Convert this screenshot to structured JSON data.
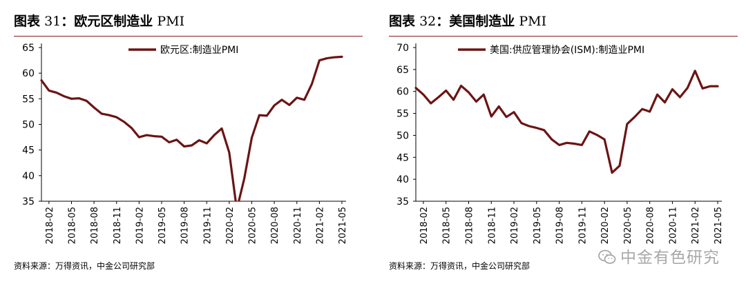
{
  "panels": [
    {
      "fig_label": "图表",
      "fig_num": "31",
      "fig_sep": "：",
      "fig_name": "欧元区制造业",
      "fig_suffix": "PMI",
      "source": "资料来源：万得资讯，中金公司研究部"
    },
    {
      "fig_label": "图表",
      "fig_num": "32",
      "fig_sep": "：",
      "fig_name": "美国制造业",
      "fig_suffix": "PMI",
      "source": "资料来源：万得资讯，中金公司研究部"
    }
  ],
  "watermark": "中金有色研究",
  "colors": {
    "line": "#6b1414",
    "accent": "#8a1a1a"
  },
  "chart_data": [
    {
      "type": "line",
      "title": "欧元区制造业 PMI",
      "ylim": [
        35,
        65
      ],
      "yticks": [
        35,
        40,
        45,
        50,
        55,
        60,
        65
      ],
      "xtick_labels": [
        "2018-02",
        "2018-05",
        "2018-08",
        "2018-11",
        "2019-02",
        "2019-05",
        "2019-08",
        "2019-11",
        "2020-02",
        "2020-05",
        "2020-08",
        "2020-11",
        "2021-02",
        "2021-05"
      ],
      "grid": false,
      "legend_position": "top-right",
      "series": [
        {
          "name": "欧元区:制造业PMI",
          "x": [
            "2018-01",
            "2018-02",
            "2018-03",
            "2018-04",
            "2018-05",
            "2018-06",
            "2018-07",
            "2018-08",
            "2018-09",
            "2018-10",
            "2018-11",
            "2018-12",
            "2019-01",
            "2019-02",
            "2019-03",
            "2019-04",
            "2019-05",
            "2019-06",
            "2019-07",
            "2019-08",
            "2019-09",
            "2019-10",
            "2019-11",
            "2019-12",
            "2020-01",
            "2020-02",
            "2020-03",
            "2020-04",
            "2020-05",
            "2020-06",
            "2020-07",
            "2020-08",
            "2020-09",
            "2020-10",
            "2020-11",
            "2020-12",
            "2021-01",
            "2021-02",
            "2021-03",
            "2021-04",
            "2021-05"
          ],
          "values": [
            58.6,
            56.6,
            56.2,
            55.5,
            55.0,
            55.1,
            54.6,
            53.3,
            52.1,
            51.8,
            51.4,
            50.5,
            49.3,
            47.5,
            47.9,
            47.7,
            47.6,
            46.5,
            47.0,
            45.7,
            45.9,
            46.9,
            46.3,
            47.9,
            49.2,
            44.5,
            33.4,
            39.4,
            47.4,
            51.8,
            51.7,
            53.7,
            54.8,
            53.8,
            55.2,
            54.8,
            57.9,
            62.5,
            62.9,
            63.1,
            63.2
          ]
        }
      ]
    },
    {
      "type": "line",
      "title": "美国制造业 PMI",
      "ylim": [
        35,
        70
      ],
      "yticks": [
        35,
        40,
        45,
        50,
        55,
        60,
        65,
        70
      ],
      "xtick_labels": [
        "2018-02",
        "2018-05",
        "2018-08",
        "2018-11",
        "2019-02",
        "2019-05",
        "2019-08",
        "2019-11",
        "2020-02",
        "2020-05",
        "2020-08",
        "2020-11",
        "2021-02",
        "2021-05"
      ],
      "grid": false,
      "legend_position": "top-right",
      "series": [
        {
          "name": "美国:供应管理协会(ISM):制造业PMI",
          "x": [
            "2018-01",
            "2018-02",
            "2018-03",
            "2018-04",
            "2018-05",
            "2018-06",
            "2018-07",
            "2018-08",
            "2018-09",
            "2018-10",
            "2018-11",
            "2018-12",
            "2019-01",
            "2019-02",
            "2019-03",
            "2019-04",
            "2019-05",
            "2019-06",
            "2019-07",
            "2019-08",
            "2019-09",
            "2019-10",
            "2019-11",
            "2019-12",
            "2020-01",
            "2020-02",
            "2020-03",
            "2020-04",
            "2020-05",
            "2020-06",
            "2020-07",
            "2020-08",
            "2020-09",
            "2020-10",
            "2020-11",
            "2020-12",
            "2021-01",
            "2021-02",
            "2021-03",
            "2021-04",
            "2021-05"
          ],
          "values": [
            60.8,
            59.3,
            57.3,
            58.7,
            60.2,
            58.1,
            61.3,
            59.8,
            57.7,
            59.3,
            54.3,
            56.6,
            54.2,
            55.3,
            52.8,
            52.1,
            51.7,
            51.2,
            49.1,
            47.8,
            48.3,
            48.1,
            47.8,
            50.9,
            50.1,
            49.1,
            41.5,
            43.1,
            52.6,
            54.2,
            56.0,
            55.4,
            59.3,
            57.5,
            60.5,
            58.7,
            60.8,
            64.7,
            60.7,
            61.2,
            61.2
          ]
        }
      ]
    }
  ]
}
